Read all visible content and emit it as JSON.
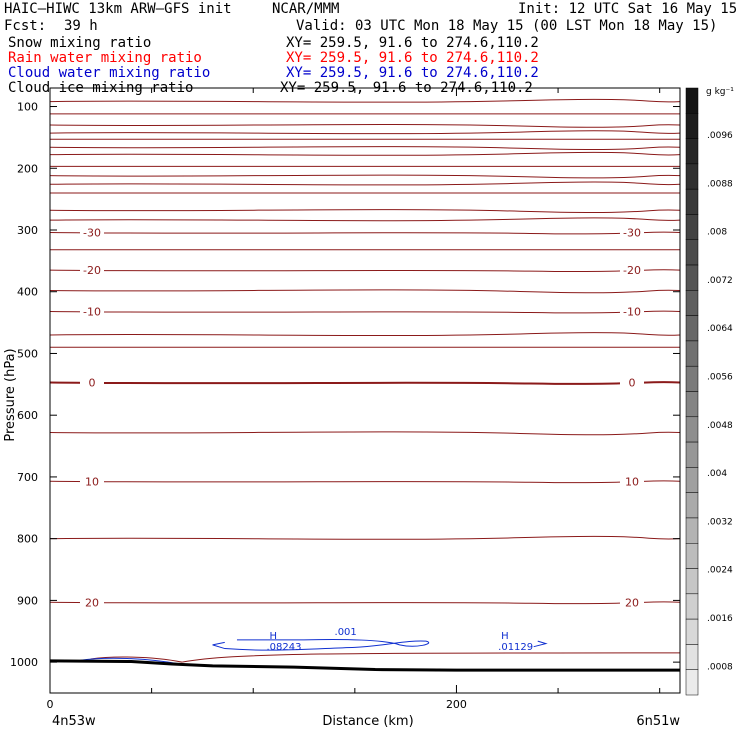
{
  "header": {
    "model": "HAIC–HIWC 13km ARW–GFS init",
    "center": "NCAR/MMM",
    "init": "Init: 12 UTC Sat 16 May 15",
    "fcst_label": "Fcst:",
    "fcst_value": "39 h",
    "valid": "Valid: 03 UTC Mon 18 May 15 (00 LST Mon 18 May 15)"
  },
  "fields": [
    {
      "name": "Snow mixing ratio",
      "xy": "XY= 259.5, 91.6 to 274.6,110.2",
      "color": "#000000"
    },
    {
      "name": "Rain water mixing ratio",
      "xy": "XY= 259.5, 91.6 to 274.6,110.2",
      "color": "#ff0000"
    },
    {
      "name": "Cloud water mixing ratio",
      "xy": "XY= 259.5, 91.6 to 274.6,110.2",
      "color": "#0000cc"
    },
    {
      "name": "Cloud ice mixing ratio",
      "xy": "XY= 259.5, 91.6 to 274.6,110.2",
      "color": "#000000"
    }
  ],
  "colorbar": {
    "unit": "g kg⁻¹",
    "ticks": [
      ".0096",
      ".0088",
      ".008",
      ".0072",
      ".0064",
      ".0056",
      ".0048",
      ".004",
      ".0032",
      ".0024",
      ".0016",
      ".0008"
    ]
  },
  "chart_data": {
    "type": "contour-cross-section",
    "xlabel": "Distance (km)",
    "ylabel": "Pressure (hPa)",
    "x_ticks": [
      0,
      200
    ],
    "y_ticks": [
      100,
      200,
      300,
      400,
      500,
      600,
      700,
      800,
      900,
      1000
    ],
    "xlim": [
      0,
      310
    ],
    "ylim": [
      1050,
      70
    ],
    "x_start_label": "4n53w",
    "x_end_label": "6n51w",
    "temperature_contours": [
      {
        "label": "-30",
        "p": 304
      },
      {
        "label": "-20",
        "p": 365
      },
      {
        "label": "-10",
        "p": 432
      },
      {
        "label": "0",
        "p": 547
      },
      {
        "label": "10",
        "p": 707
      },
      {
        "label": "20",
        "p": 903
      }
    ],
    "cloud_water_labels": [
      {
        "label": "H",
        "sub": ".08243",
        "x": 108,
        "p": 972
      },
      {
        "label": ".001",
        "x": 140,
        "p": 966
      },
      {
        "label": "H",
        "sub": ".01129",
        "x": 222,
        "p": 972
      }
    ],
    "terrain_p": [
      [
        0,
        998
      ],
      [
        40,
        999
      ],
      [
        60,
        1003
      ],
      [
        80,
        1006
      ],
      [
        120,
        1008
      ],
      [
        160,
        1012
      ],
      [
        200,
        1013
      ],
      [
        250,
        1013
      ],
      [
        310,
        1013
      ]
    ]
  }
}
